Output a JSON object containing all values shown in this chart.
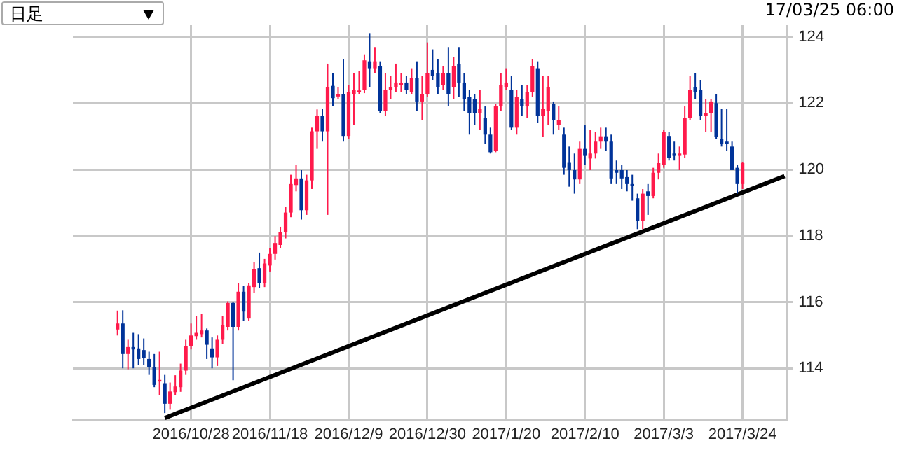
{
  "chart_data": {
    "type": "candlestick",
    "title": "日足",
    "annotations": [
      "17/03/25 06:00"
    ],
    "categories": [
      null,
      null,
      null,
      null,
      null,
      null,
      null,
      null,
      null,
      null,
      null,
      null,
      null,
      null,
      null,
      null,
      null,
      null,
      null,
      null,
      null,
      null,
      "2016/10/28",
      null,
      null,
      null,
      null,
      null,
      null,
      null,
      null,
      null,
      null,
      null,
      null,
      null,
      null,
      "2016/11/18",
      null,
      null,
      null,
      null,
      null,
      null,
      null,
      null,
      null,
      null,
      null,
      null,
      null,
      null,
      "2016/12/9",
      null,
      null,
      null,
      null,
      null,
      null,
      null,
      null,
      null,
      null,
      null,
      null,
      null,
      null,
      "2016/12/30",
      null,
      null,
      null,
      null,
      null,
      null,
      null,
      null,
      null,
      null,
      null,
      null,
      null,
      null,
      "2017/1/20",
      null,
      null,
      null,
      null,
      null,
      null,
      null,
      null,
      null,
      null,
      null,
      null,
      null,
      null,
      "2017/2/10",
      null,
      null,
      null,
      null,
      null,
      null,
      null,
      null,
      null,
      null,
      null,
      null,
      null,
      null,
      "2017/3/3",
      null,
      null,
      null,
      null,
      null,
      null,
      null,
      null,
      null,
      null,
      null,
      null,
      null,
      null,
      "2017/3/24",
      null,
      null,
      null,
      null,
      null,
      null,
      null,
      null
    ],
    "ylim": [
      112.45,
      124.35
    ],
    "yticks": [
      114,
      116,
      118,
      120,
      122,
      124
    ],
    "grid": true,
    "series": [
      {
        "type": "candlestick",
        "ohlc": [
          null,
          null,
          null,
          null,
          null,
          null,
          null,
          null,
          [
            115.17,
            115.74,
            114.99,
            115.35
          ],
          [
            115.35,
            115.75,
            114.0,
            114.43
          ],
          [
            114.43,
            114.86,
            113.97,
            114.64
          ],
          [
            114.64,
            115.07,
            114.0,
            114.57
          ],
          [
            114.6,
            115.03,
            114.1,
            114.28
          ],
          [
            114.55,
            114.9,
            114.1,
            114.3
          ],
          [
            114.28,
            114.5,
            113.8,
            114.03
          ],
          [
            114.03,
            114.43,
            113.43,
            113.5
          ],
          [
            113.6,
            114.5,
            113.2,
            113.65
          ],
          [
            113.55,
            113.8,
            112.65,
            112.93
          ],
          [
            112.93,
            113.57,
            112.75,
            113.3
          ],
          [
            113.28,
            113.79,
            113.2,
            113.45
          ],
          [
            113.43,
            114.14,
            113.29,
            113.93
          ],
          [
            113.93,
            114.86,
            113.8,
            114.68
          ],
          [
            114.68,
            115.35,
            114.57,
            114.99
          ],
          [
            114.97,
            115.57,
            114.86,
            115.07
          ],
          [
            115.03,
            115.64,
            114.93,
            115.14
          ],
          [
            115.14,
            115.2,
            114.28,
            114.71
          ],
          [
            114.6,
            114.93,
            114.0,
            114.33
          ],
          [
            114.33,
            114.99,
            114.07,
            114.86
          ],
          [
            114.86,
            115.57,
            114.74,
            115.31
          ],
          [
            115.25,
            116.02,
            115.14,
            115.97
          ],
          [
            115.97,
            115.99,
            113.64,
            115.25
          ],
          [
            115.25,
            116.57,
            115.14,
            116.31
          ],
          [
            116.31,
            116.49,
            115.42,
            115.71
          ],
          [
            115.5,
            116.57,
            115.42,
            116.5
          ],
          [
            116.45,
            117.2,
            116.28,
            116.99
          ],
          [
            117.02,
            117.49,
            116.42,
            116.57
          ],
          [
            116.57,
            117.3,
            116.45,
            117.16
          ],
          [
            117.1,
            117.63,
            116.92,
            117.45
          ],
          [
            117.45,
            117.99,
            117.28,
            117.78
          ],
          [
            117.72,
            118.27,
            117.63,
            118.1
          ],
          [
            118.1,
            118.87,
            117.92,
            118.7
          ],
          [
            118.7,
            119.84,
            118.56,
            119.56
          ],
          [
            119.53,
            120.13,
            119.34,
            119.73
          ],
          [
            119.73,
            119.98,
            118.49,
            118.77
          ],
          [
            118.77,
            119.84,
            118.63,
            119.67
          ],
          [
            119.67,
            121.26,
            119.41,
            121.15
          ],
          [
            121.15,
            121.81,
            120.62,
            121.62
          ],
          [
            121.62,
            121.83,
            120.84,
            121.15
          ],
          [
            121.15,
            123.19,
            118.63,
            122.48
          ],
          [
            122.52,
            122.9,
            121.91,
            122.15
          ],
          [
            122.2,
            122.48,
            122.12,
            122.26
          ],
          [
            122.26,
            123.33,
            120.84,
            121.01
          ],
          [
            121.01,
            122.55,
            120.91,
            122.33
          ],
          [
            122.26,
            122.9,
            121.33,
            122.4
          ],
          [
            122.33,
            122.97,
            122.26,
            122.38
          ],
          [
            122.4,
            123.47,
            122.3,
            123.29
          ],
          [
            123.26,
            124.11,
            122.48,
            123.05
          ],
          [
            123.05,
            123.69,
            122.9,
            123.26
          ],
          [
            123.12,
            123.26,
            121.69,
            121.76
          ],
          [
            121.76,
            122.9,
            121.62,
            122.4
          ],
          [
            122.4,
            122.83,
            122.12,
            122.48
          ],
          [
            122.48,
            123.19,
            122.33,
            122.62
          ],
          [
            122.55,
            122.9,
            122.33,
            122.6
          ],
          [
            122.62,
            122.83,
            122.26,
            122.4
          ],
          [
            122.33,
            123.05,
            122.26,
            122.76
          ],
          [
            122.76,
            123.26,
            121.76,
            122.05
          ],
          [
            122.05,
            122.83,
            121.48,
            122.26
          ],
          [
            122.26,
            123.83,
            122.19,
            122.9
          ],
          [
            123.0,
            123.62,
            122.69,
            122.83
          ],
          [
            122.9,
            123.33,
            122.26,
            122.48
          ],
          [
            122.55,
            123.12,
            122.4,
            122.9
          ],
          [
            122.9,
            123.69,
            121.9,
            122.26
          ],
          [
            122.48,
            123.4,
            122.12,
            123.12
          ],
          [
            123.19,
            123.69,
            122.19,
            122.62
          ],
          [
            122.62,
            122.9,
            121.76,
            122.12
          ],
          [
            122.19,
            122.4,
            121.05,
            121.69
          ],
          [
            122.12,
            122.26,
            121.33,
            121.69
          ],
          [
            121.69,
            122.4,
            121.19,
            121.83
          ],
          [
            121.55,
            121.9,
            120.77,
            121.05
          ],
          [
            121.05,
            121.26,
            120.48,
            120.52
          ],
          [
            120.55,
            121.98,
            120.52,
            121.9
          ],
          [
            121.9,
            122.9,
            121.76,
            122.55
          ],
          [
            122.48,
            123.05,
            122.4,
            122.62
          ],
          [
            122.4,
            122.83,
            121.19,
            121.26
          ],
          [
            121.26,
            122.4,
            121.05,
            122.19
          ],
          [
            122.12,
            122.55,
            121.62,
            121.9
          ],
          [
            121.9,
            122.55,
            121.55,
            122.33
          ],
          [
            122.33,
            123.33,
            122.19,
            123.12
          ],
          [
            123.05,
            123.26,
            121.41,
            121.62
          ],
          [
            121.62,
            122.83,
            120.98,
            121.83
          ],
          [
            121.76,
            122.83,
            121.33,
            122.48
          ],
          [
            121.98,
            122.05,
            121.05,
            121.48
          ],
          [
            121.33,
            121.9,
            121.19,
            121.48
          ],
          [
            121.05,
            121.26,
            119.84,
            120.05
          ],
          [
            120.2,
            120.69,
            119.48,
            119.98
          ],
          [
            119.98,
            120.48,
            119.27,
            119.7
          ],
          [
            119.7,
            120.84,
            119.56,
            120.62
          ],
          [
            120.62,
            121.33,
            120.13,
            120.41
          ],
          [
            120.33,
            121.19,
            119.98,
            120.48
          ],
          [
            120.48,
            121.12,
            120.33,
            120.84
          ],
          [
            120.84,
            121.26,
            120.62,
            121.0
          ],
          [
            121.0,
            121.26,
            120.55,
            120.84
          ],
          [
            120.84,
            121.05,
            119.56,
            119.73
          ],
          [
            119.98,
            120.27,
            119.56,
            119.9
          ],
          [
            119.98,
            120.13,
            119.41,
            119.73
          ],
          [
            119.77,
            119.98,
            119.34,
            119.56
          ],
          [
            119.56,
            119.84,
            119.06,
            119.5
          ],
          [
            119.13,
            119.27,
            118.2,
            118.45
          ],
          [
            118.45,
            119.41,
            118.2,
            119.27
          ],
          [
            119.34,
            119.56,
            118.63,
            119.2
          ],
          [
            119.2,
            120.05,
            119.13,
            119.9
          ],
          [
            119.9,
            120.48,
            119.7,
            120.19
          ],
          [
            120.13,
            121.19,
            120.05,
            121.12
          ],
          [
            121.01,
            121.12,
            120.27,
            120.34
          ],
          [
            120.48,
            120.84,
            120.27,
            120.41
          ],
          [
            120.41,
            120.69,
            119.98,
            120.48
          ],
          [
            120.45,
            121.9,
            120.34,
            121.55
          ],
          [
            121.55,
            122.83,
            121.48,
            122.4
          ],
          [
            122.48,
            122.9,
            122.12,
            122.33
          ],
          [
            122.4,
            122.69,
            121.48,
            121.62
          ],
          [
            121.62,
            122.12,
            121.12,
            121.69
          ],
          [
            121.69,
            122.12,
            121.12,
            122.05
          ],
          [
            122.0,
            122.26,
            120.91,
            120.98
          ],
          [
            120.91,
            121.83,
            120.69,
            120.77
          ],
          [
            120.84,
            121.83,
            120.55,
            120.77
          ],
          [
            120.69,
            120.84,
            119.98,
            119.98
          ],
          [
            120.05,
            120.13,
            119.27,
            119.56
          ],
          [
            119.56,
            120.23,
            119.41,
            120.19
          ],
          null,
          null,
          null,
          null,
          null,
          null,
          null,
          null
        ],
        "colors": [
          null,
          null,
          null,
          null,
          null,
          null,
          null,
          null,
          "#ff1a4b",
          "#003399",
          "#ff1a4b",
          "#003399",
          "#003399",
          "#003399",
          "#003399",
          "#003399",
          "#ff1a4b",
          "#003399",
          "#ff1a4b",
          "#ff1a4b",
          "#ff1a4b",
          "#ff1a4b",
          "#ff1a4b",
          "#ff1a4b",
          "#ff1a4b",
          "#003399",
          "#003399",
          "#ff1a4b",
          "#ff1a4b",
          "#ff1a4b",
          "#003399",
          "#ff1a4b",
          "#003399",
          "#ff1a4b",
          "#ff1a4b",
          "#003399",
          "#ff1a4b",
          "#ff1a4b",
          "#ff1a4b",
          "#ff1a4b",
          "#ff1a4b",
          "#ff1a4b",
          "#ff1a4b",
          "#003399",
          "#ff1a4b",
          "#ff1a4b",
          "#ff1a4b",
          "#003399",
          "#ff1a4b",
          "#003399",
          "#ff1a4b",
          "#003399",
          "#ff1a4b",
          "#ff1a4b",
          "#ff1a4b",
          "#ff1a4b",
          "#003399",
          "#ff1a4b",
          "#003399",
          "#ff1a4b",
          "#ff1a4b",
          "#ff1a4b",
          "#ff1a4b",
          "#003399",
          "#ff1a4b",
          "#003399",
          "#ff1a4b",
          "#ff1a4b",
          "#003399",
          "#003399",
          "#ff1a4b",
          "#003399",
          "#ff1a4b",
          "#003399",
          "#003399",
          "#003399",
          "#003399",
          "#ff1a4b",
          "#003399",
          "#003399",
          "#ff1a4b",
          "#ff1a4b",
          "#ff1a4b",
          "#003399",
          "#ff1a4b",
          "#003399",
          "#ff1a4b",
          "#ff1a4b",
          "#003399",
          "#ff1a4b",
          "#ff1a4b",
          "#003399",
          "#ff1a4b",
          "#003399",
          "#003399",
          "#003399",
          "#ff1a4b",
          "#003399",
          "#ff1a4b",
          "#ff1a4b",
          "#ff1a4b",
          "#003399",
          "#003399",
          "#003399",
          "#003399",
          "#003399",
          "#003399",
          "#003399",
          "#ff1a4b",
          "#003399",
          "#ff1a4b",
          "#ff1a4b",
          "#ff1a4b",
          "#003399",
          "#003399",
          "#ff1a4b",
          "#ff1a4b",
          "#ff1a4b",
          "#003399",
          "#003399",
          "#ff1a4b",
          "#ff1a4b",
          "#003399",
          "#003399",
          "#003399",
          "#003399",
          "#003399",
          "#ff1a4b",
          null,
          null,
          null,
          null,
          null,
          null,
          null,
          null
        ]
      },
      {
        "type": "line",
        "color": "#000000",
        "values": [
          null,
          null,
          null,
          null,
          null,
          null,
          null,
          null,
          null,
          null,
          null,
          null,
          null,
          null,
          null,
          null,
          null,
          112.5,
          null,
          null,
          null,
          null,
          null,
          null,
          null,
          null,
          null,
          null,
          null,
          null,
          null,
          null,
          null,
          null,
          null,
          null,
          null,
          null,
          null,
          null,
          null,
          null,
          null,
          null,
          null,
          null,
          null,
          null,
          null,
          null,
          null,
          null,
          null,
          null,
          null,
          null,
          null,
          null,
          null,
          null,
          null,
          null,
          null,
          null,
          null,
          null,
          null,
          null,
          null,
          null,
          null,
          null,
          null,
          null,
          null,
          null,
          null,
          null,
          null,
          null,
          null,
          null,
          null,
          null,
          null,
          null,
          null,
          null,
          null,
          null,
          null,
          null,
          null,
          null,
          null,
          null,
          null,
          null,
          null,
          null,
          null,
          null,
          null,
          null,
          null,
          null,
          null,
          null,
          null,
          null,
          null,
          null,
          null,
          null,
          null,
          null,
          null,
          null,
          null,
          null,
          null,
          null,
          null,
          null,
          null,
          null,
          null,
          null,
          null,
          null,
          null,
          null,
          null,
          null,
          null,
          119.8
        ]
      }
    ]
  }
}
